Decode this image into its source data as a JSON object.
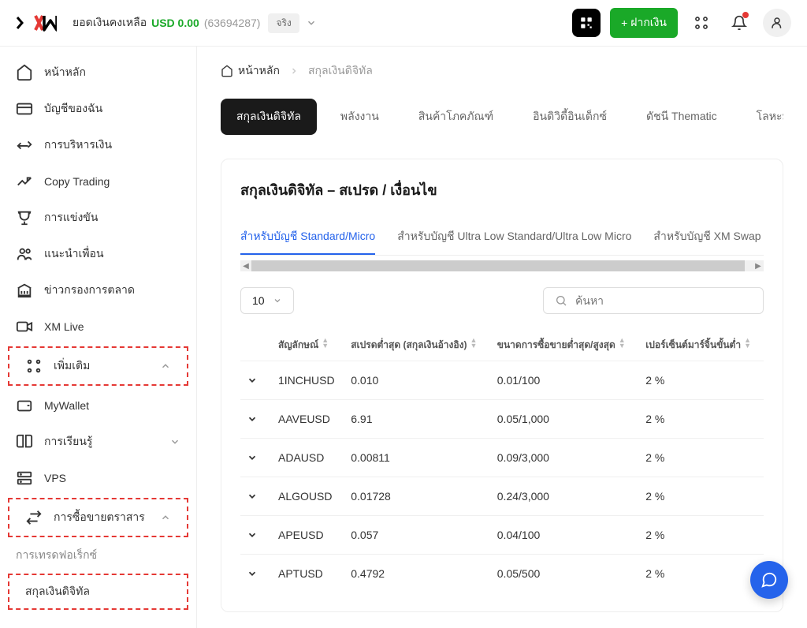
{
  "header": {
    "logo": "XM",
    "balance_label": "ยอดเงินคงเหลือ",
    "balance_amount": "USD 0.00",
    "account_id": "(63694287)",
    "badge": "จริง",
    "deposit_label": "ฝากเงิน"
  },
  "sidebar": {
    "items": [
      {
        "label": "หน้าหลัก"
      },
      {
        "label": "บัญชีของฉัน"
      },
      {
        "label": "การบริหารเงิน"
      },
      {
        "label": "Copy Trading"
      },
      {
        "label": "การแข่งขัน"
      },
      {
        "label": "แนะนำเพื่อน"
      },
      {
        "label": "ข่าวกรองการตลาด"
      },
      {
        "label": "XM Live"
      },
      {
        "label": "เพิ่มเติม"
      },
      {
        "label": "MyWallet"
      },
      {
        "label": "การเรียนรู้"
      },
      {
        "label": "VPS"
      },
      {
        "label": "การซื้อขายตราสาร"
      }
    ],
    "sub_forex": "การเทรดฟอเร็กซ์",
    "sub_crypto": "สกุลเงินดิจิทัล"
  },
  "breadcrumb": {
    "home": "หน้าหลัก",
    "current": "สกุลเงินดิจิทัล"
  },
  "category_tabs": [
    "สกุลเงินดิจิทัล",
    "พลังงาน",
    "สินค้าโภคภัณฑ์",
    "อินดิวิดี้อินเด็กซ์",
    "ดัชนี Thematic",
    "โลหะมีค่า"
  ],
  "panel": {
    "title": "สกุลเงินดิจิทัล – สเปรด / เงื่อนไข",
    "account_tabs": [
      "สำหรับบัญชี Standard/Micro",
      "สำหรับบัญชี Ultra Low Standard/Ultra Low Micro",
      "สำหรับบัญชี XM Swap Free S"
    ],
    "page_size": "10",
    "search_placeholder": "ค้นหา",
    "columns": [
      "สัญลักษณ์",
      "สเปรดต่ำสุด (สกุลเงินอ้างอิง)",
      "ขนาดการซื้อขายต่ำสุด/สูงสุด",
      "เปอร์เซ็นต์มาร์จิ้นขั้นต่ำ"
    ],
    "rows": [
      {
        "symbol": "1INCHUSD",
        "spread": "0.010",
        "size": "0.01/100",
        "margin": "2 %"
      },
      {
        "symbol": "AAVEUSD",
        "spread": "6.91",
        "size": "0.05/1,000",
        "margin": "2 %"
      },
      {
        "symbol": "ADAUSD",
        "spread": "0.00811",
        "size": "0.09/3,000",
        "margin": "2 %"
      },
      {
        "symbol": "ALGOUSD",
        "spread": "0.01728",
        "size": "0.24/3,000",
        "margin": "2 %"
      },
      {
        "symbol": "APEUSD",
        "spread": "0.057",
        "size": "0.04/100",
        "margin": "2 %"
      },
      {
        "symbol": "APTUSD",
        "spread": "0.4792",
        "size": "0.05/500",
        "margin": "2 %"
      }
    ]
  }
}
